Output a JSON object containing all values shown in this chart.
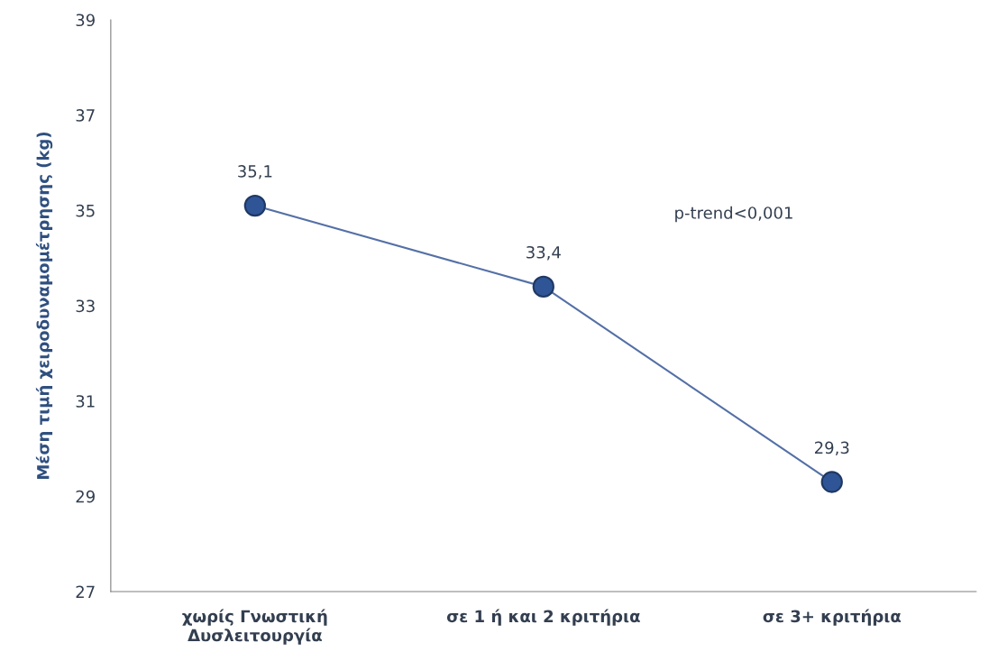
{
  "chart_data": {
    "type": "line",
    "ylabel": "Μέση τιμή χειροδυναμομέτρησης (kg)",
    "categories": [
      "χωρίς Γνωστική\nΔυσλειτουργία",
      "σε 1 ή και 2 κριτήρια",
      "σε 3+ κριτήρια"
    ],
    "series": [
      {
        "color": "#2f5597",
        "values": [
          35.1,
          33.4,
          29.3
        ],
        "value_labels": [
          "35,1",
          "33,4",
          "29,3"
        ]
      }
    ],
    "ylim": [
      27,
      39
    ],
    "yticks": [
      27,
      29,
      31,
      33,
      35,
      37,
      39
    ],
    "marker": "circle",
    "line_style": "solid",
    "grid": false,
    "annotations": [
      "p-trend<0,001"
    ]
  }
}
